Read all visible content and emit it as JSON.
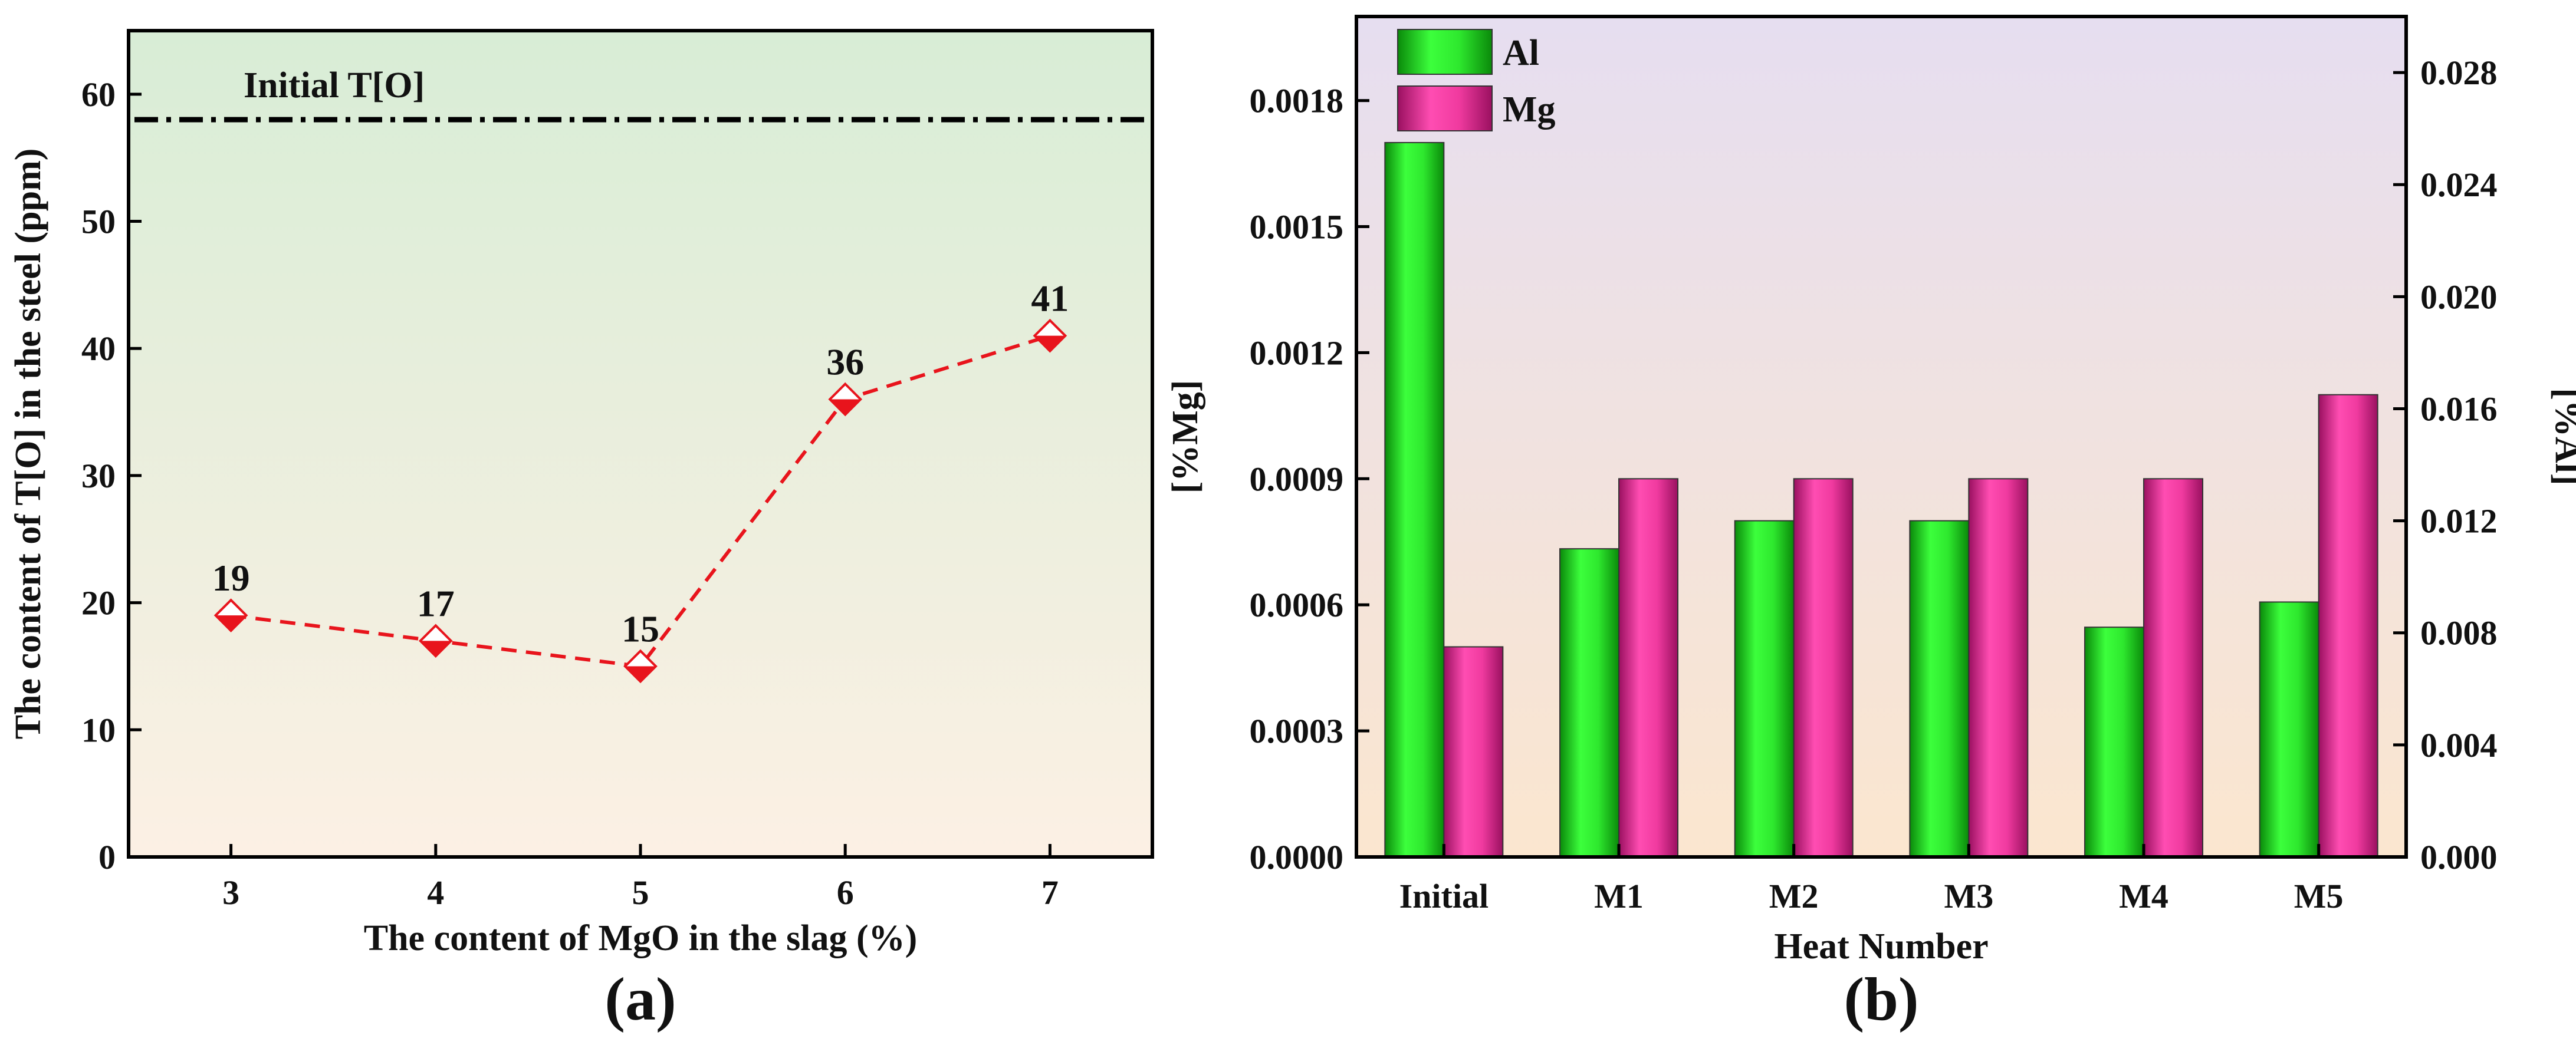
{
  "chart_data": [
    {
      "type": "line",
      "panel_label": "(a)",
      "xlabel": "The content of MgO in the slag (%)",
      "ylabel": "The content of T[O] in the steel (ppm)",
      "x": [
        3,
        4,
        5,
        6,
        7
      ],
      "x_ticks": [
        "3",
        "4",
        "5",
        "6",
        "7"
      ],
      "xlim": [
        2.5,
        7.5
      ],
      "y": [
        19,
        17,
        15,
        36,
        41
      ],
      "data_labels": [
        "19",
        "17",
        "15",
        "36",
        "41"
      ],
      "ylim": [
        0,
        65
      ],
      "y_ticks": [
        "0",
        "10",
        "20",
        "30",
        "40",
        "50",
        "60"
      ],
      "reference_line": {
        "label": "Initial T[O]",
        "value": 58
      },
      "series_color": "#e8141c",
      "background_gradient": [
        "#d8edd6",
        "#fcf0e4"
      ]
    },
    {
      "type": "bar",
      "panel_label": "(b)",
      "xlabel": "Heat Number",
      "ylabel_left": "[%Mg]",
      "ylabel_right": "[%Al]",
      "categories": [
        "Initial",
        "M1",
        "M2",
        "M3",
        "M4",
        "M5"
      ],
      "series": [
        {
          "name": "Al",
          "axis": "right",
          "color": "#22dd22",
          "values": [
            0.0255,
            0.011,
            0.012,
            0.012,
            0.0082,
            0.0091
          ]
        },
        {
          "name": "Mg",
          "axis": "left",
          "color": "#ee3399",
          "values": [
            0.0005,
            0.0009,
            0.0009,
            0.0009,
            0.0009,
            0.0011
          ]
        }
      ],
      "ylim_left": [
        0,
        0.002
      ],
      "ylim_right": [
        0,
        0.03
      ],
      "y_ticks_left": [
        "0.0000",
        "0.0003",
        "0.0006",
        "0.0009",
        "0.0012",
        "0.0015",
        "0.0018"
      ],
      "y_ticks_right": [
        "0.000",
        "0.004",
        "0.008",
        "0.012",
        "0.016",
        "0.020",
        "0.024",
        "0.028"
      ],
      "legend_position": "top-left",
      "background_gradient": [
        "#e6def0",
        "#fbe6cf"
      ]
    }
  ]
}
